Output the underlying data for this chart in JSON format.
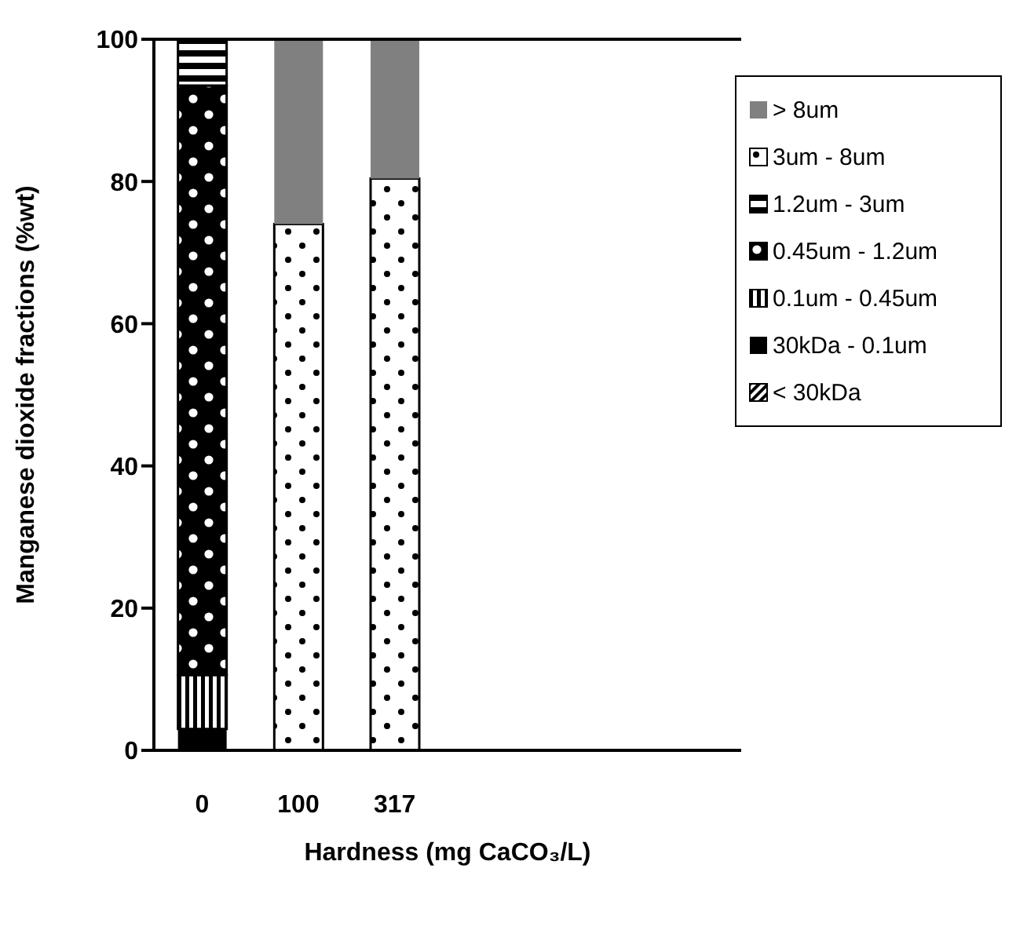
{
  "chart_data": {
    "type": "bar",
    "stacked": true,
    "xlabel": "Hardness (mg CaCO₃/L)",
    "ylabel": "Manganese dioxide fractions (%wt)",
    "categories": [
      "0",
      "100",
      "317"
    ],
    "ylim": [
      0,
      100
    ],
    "yticks": [
      0,
      20,
      40,
      60,
      80,
      100
    ],
    "grid": false,
    "legend": "top right",
    "series": [
      {
        "name": "< 30kDa",
        "color": "#000000",
        "values": [
          0,
          0,
          0
        ]
      },
      {
        "name": "30kDa - 0.1um",
        "color": "#000000",
        "values": [
          3,
          0,
          0
        ]
      },
      {
        "name": "0.1um - 0.45um",
        "color": "#000000",
        "values": [
          7.6,
          0,
          0
        ]
      },
      {
        "name": "0.45um - 1.2um",
        "color": "#000000",
        "values": [
          82.9,
          0,
          0
        ]
      },
      {
        "name": "1.2um - 3um",
        "color": "#000000",
        "values": [
          6.5,
          0,
          0
        ]
      },
      {
        "name": "3um - 8um",
        "color": "#000000",
        "values": [
          0,
          74,
          80.4
        ]
      },
      {
        "name": "> 8um",
        "color": "#808080",
        "values": [
          0,
          26,
          19.6
        ]
      }
    ]
  }
}
